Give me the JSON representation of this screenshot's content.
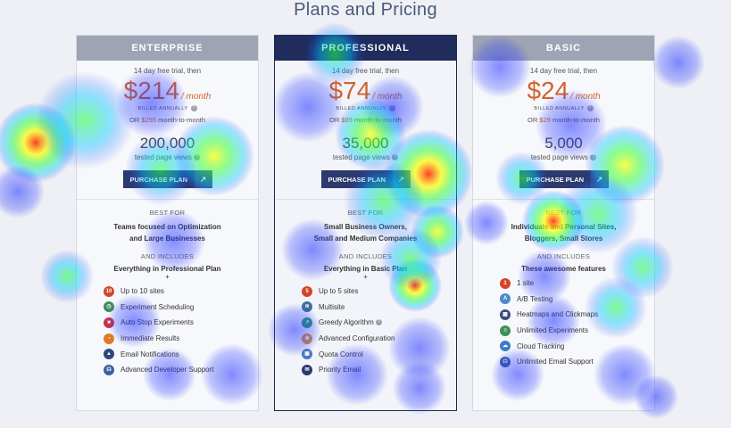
{
  "page": {
    "title": "Plans and Pricing"
  },
  "plans": [
    {
      "name": "ENTERPRISE",
      "trial": "14 day free trial, then",
      "price": "$214",
      "per": "/ month",
      "billed": "BILLED ANNUALLY",
      "or_prefix": "OR ",
      "monthly_price": "$255",
      "monthly_suffix": " month-to-month",
      "views": "200,000",
      "views_label": "tested page views",
      "cta": "PURCHASE PLAN",
      "best_for_label": "BEST FOR",
      "best_for_line1": "Teams focused on Optimization",
      "best_for_line2": "and Large Businesses",
      "includes_label": "AND INCLUDES",
      "includes": "Everything in Professional Plan",
      "plus": "+",
      "features": [
        {
          "label": "Up to 10 sites",
          "icon": "number-10-icon",
          "glyph": "10",
          "color": "#d2462a"
        },
        {
          "label": "Experiment Scheduling",
          "icon": "clock-icon",
          "glyph": "◷",
          "color": "#3f8f5c"
        },
        {
          "label": "Auto Stop Experiments",
          "icon": "stop-icon",
          "glyph": "■",
          "color": "#c8324a"
        },
        {
          "label": "Immediate Results",
          "icon": "timer-icon",
          "glyph": "◔",
          "color": "#e07a2a"
        },
        {
          "label": "Email Notifications",
          "icon": "alert-icon",
          "glyph": "▲",
          "color": "#2b4a7a"
        },
        {
          "label": "Advanced Developer Support",
          "icon": "headset-icon",
          "glyph": "☊",
          "color": "#3b5fa0"
        }
      ]
    },
    {
      "name": "PROFESSIONAL",
      "trial": "14 day free trial, then",
      "price": "$74",
      "per": "/ month",
      "billed": "BILLED ANNUALLY",
      "or_prefix": "OR ",
      "monthly_price": "$89",
      "monthly_suffix": " month-to-month",
      "views": "35,000",
      "views_label": "tested page views",
      "cta": "PURCHASE PLAN",
      "best_for_label": "BEST FOR",
      "best_for_line1": "Small Business Owners,",
      "best_for_line2": "Small and Medium Companies",
      "includes_label": "AND INCLUDES",
      "includes": "Everything in Basic Plan",
      "plus": "+",
      "features": [
        {
          "label": "Up to 5 sites",
          "icon": "number-5-icon",
          "glyph": "5",
          "color": "#d2462a"
        },
        {
          "label": "Multisite",
          "icon": "layers-icon",
          "glyph": "≋",
          "color": "#3f6fa0"
        },
        {
          "label": "Greedy Algorithm",
          "icon": "trend-icon",
          "glyph": "↗",
          "color": "#2a9a6a",
          "help": "?"
        },
        {
          "label": "Advanced Configuration",
          "icon": "gear-icon",
          "glyph": "✱",
          "color": "#d9942a"
        },
        {
          "label": "Quota Control",
          "icon": "lock-icon",
          "glyph": "▣",
          "color": "#4a7ac0"
        },
        {
          "label": "Priority Email",
          "icon": "email-icon",
          "glyph": "✉",
          "color": "#2b3a6a"
        }
      ]
    },
    {
      "name": "BASIC",
      "trial": "14 day free trial, then",
      "price": "$24",
      "per": "/ month",
      "billed": "BILLED ANNUALLY",
      "or_prefix": "OR ",
      "monthly_price": "$29",
      "monthly_suffix": " month-to-month",
      "views": "5,000",
      "views_label": "tested page views",
      "cta": "PURCHASE PLAN",
      "best_for_label": "BEST FOR",
      "best_for_line1": "Individuals and Personal Sites,",
      "best_for_line2": "Bloggers, Small Stores",
      "includes_label": "AND INCLUDES",
      "includes": "These awesome features",
      "plus": "",
      "features": [
        {
          "label": "1 site",
          "icon": "number-1-icon",
          "glyph": "1",
          "color": "#d2462a"
        },
        {
          "label": "A/B Testing",
          "icon": "ab-test-icon",
          "glyph": "A",
          "color": "#4a8ac8"
        },
        {
          "label": "Heatmaps and Clickmaps",
          "icon": "grid-icon",
          "glyph": "▦",
          "color": "#3b4b7a"
        },
        {
          "label": "Unlimited Experiments",
          "icon": "list-icon",
          "glyph": "≡",
          "color": "#3f8f5c"
        },
        {
          "label": "Cloud Tracking",
          "icon": "cloud-icon",
          "glyph": "☁",
          "color": "#3a7ac8"
        },
        {
          "label": "Unlimited Email Support",
          "icon": "headset-icon",
          "glyph": "☊",
          "color": "#3b5fa0"
        }
      ]
    }
  ],
  "heatmap": {
    "colors": {
      "cold": "#2030ff",
      "cool": "#00c8ff",
      "mid": "#30ff40",
      "warm": "#ffff00",
      "hot": "#ff2000"
    },
    "intensity_note": ""
  }
}
